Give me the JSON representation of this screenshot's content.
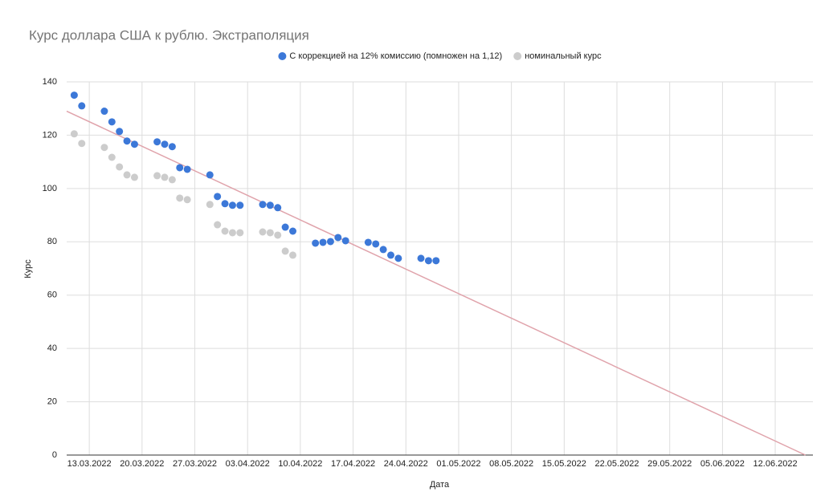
{
  "chart_data": {
    "type": "scatter",
    "title": "Курс доллара США к рублю. Экстраполяция",
    "x_label": "Дата",
    "y_label": "Курс",
    "xlim": [
      "2022-03-10",
      "2022-06-17"
    ],
    "xticks": [
      {
        "value": "2022-03-13",
        "label": "13.03.2022"
      },
      {
        "value": "2022-03-20",
        "label": "20.03.2022"
      },
      {
        "value": "2022-03-27",
        "label": "27.03.2022"
      },
      {
        "value": "2022-04-03",
        "label": "03.04.2022"
      },
      {
        "value": "2022-04-10",
        "label": "10.04.2022"
      },
      {
        "value": "2022-04-17",
        "label": "17.04.2022"
      },
      {
        "value": "2022-04-24",
        "label": "24.04.2022"
      },
      {
        "value": "2022-05-01",
        "label": "01.05.2022"
      },
      {
        "value": "2022-05-08",
        "label": "08.05.2022"
      },
      {
        "value": "2022-05-15",
        "label": "15.05.2022"
      },
      {
        "value": "2022-05-22",
        "label": "22.05.2022"
      },
      {
        "value": "2022-05-29",
        "label": "29.05.2022"
      },
      {
        "value": "2022-06-05",
        "label": "05.06.2022"
      },
      {
        "value": "2022-06-12",
        "label": "12.06.2022"
      }
    ],
    "ylim": [
      0,
      140
    ],
    "yticks": [
      0,
      20,
      40,
      60,
      80,
      100,
      120,
      140
    ],
    "grid": true,
    "legend": "top",
    "series": [
      {
        "name": "С коррекцией на 12% комиссию (помножен на 1,12)",
        "color": "#3c78d8",
        "x": [
          "2022-03-11",
          "2022-03-12",
          "2022-03-15",
          "2022-03-16",
          "2022-03-17",
          "2022-03-18",
          "2022-03-19",
          "2022-03-22",
          "2022-03-23",
          "2022-03-24",
          "2022-03-25",
          "2022-03-26",
          "2022-03-29",
          "2022-03-30",
          "2022-03-31",
          "2022-04-01",
          "2022-04-02",
          "2022-04-05",
          "2022-04-06",
          "2022-04-07",
          "2022-04-08",
          "2022-04-09",
          "2022-04-12",
          "2022-04-13",
          "2022-04-14",
          "2022-04-15",
          "2022-04-16",
          "2022-04-19",
          "2022-04-20",
          "2022-04-21",
          "2022-04-22",
          "2022-04-23",
          "2022-04-26",
          "2022-04-27",
          "2022-04-28"
        ],
        "values": [
          135,
          131,
          129,
          125,
          121.4,
          117.8,
          116.6,
          117.5,
          116.6,
          115.7,
          107.8,
          107.2,
          105.1,
          97,
          94.3,
          93.7,
          93.7,
          94,
          93.7,
          92.8,
          85.5,
          84,
          79.5,
          79.8,
          80.1,
          81.6,
          80.4,
          79.8,
          79.2,
          77.1,
          75,
          73.8,
          73.8,
          72.9,
          72.9
        ]
      },
      {
        "name": "номинальный курс",
        "color": "#cccccc",
        "x": [
          "2022-03-11",
          "2022-03-12",
          "2022-03-15",
          "2022-03-16",
          "2022-03-17",
          "2022-03-18",
          "2022-03-19",
          "2022-03-22",
          "2022-03-23",
          "2022-03-24",
          "2022-03-25",
          "2022-03-26",
          "2022-03-29",
          "2022-03-30",
          "2022-03-31",
          "2022-04-01",
          "2022-04-02",
          "2022-04-05",
          "2022-04-06",
          "2022-04-07",
          "2022-04-08",
          "2022-04-09"
        ],
        "values": [
          120.5,
          116.9,
          115.4,
          111.7,
          108.1,
          105.1,
          104.2,
          104.8,
          104.2,
          103.3,
          96.4,
          95.8,
          94,
          86.4,
          84,
          83.4,
          83.4,
          83.7,
          83.4,
          82.5,
          76.5,
          75
        ]
      }
    ],
    "trendline": {
      "color": "#e0a3ab",
      "x": [
        "2022-03-10",
        "2022-06-16"
      ],
      "values": [
        129,
        0
      ]
    }
  }
}
